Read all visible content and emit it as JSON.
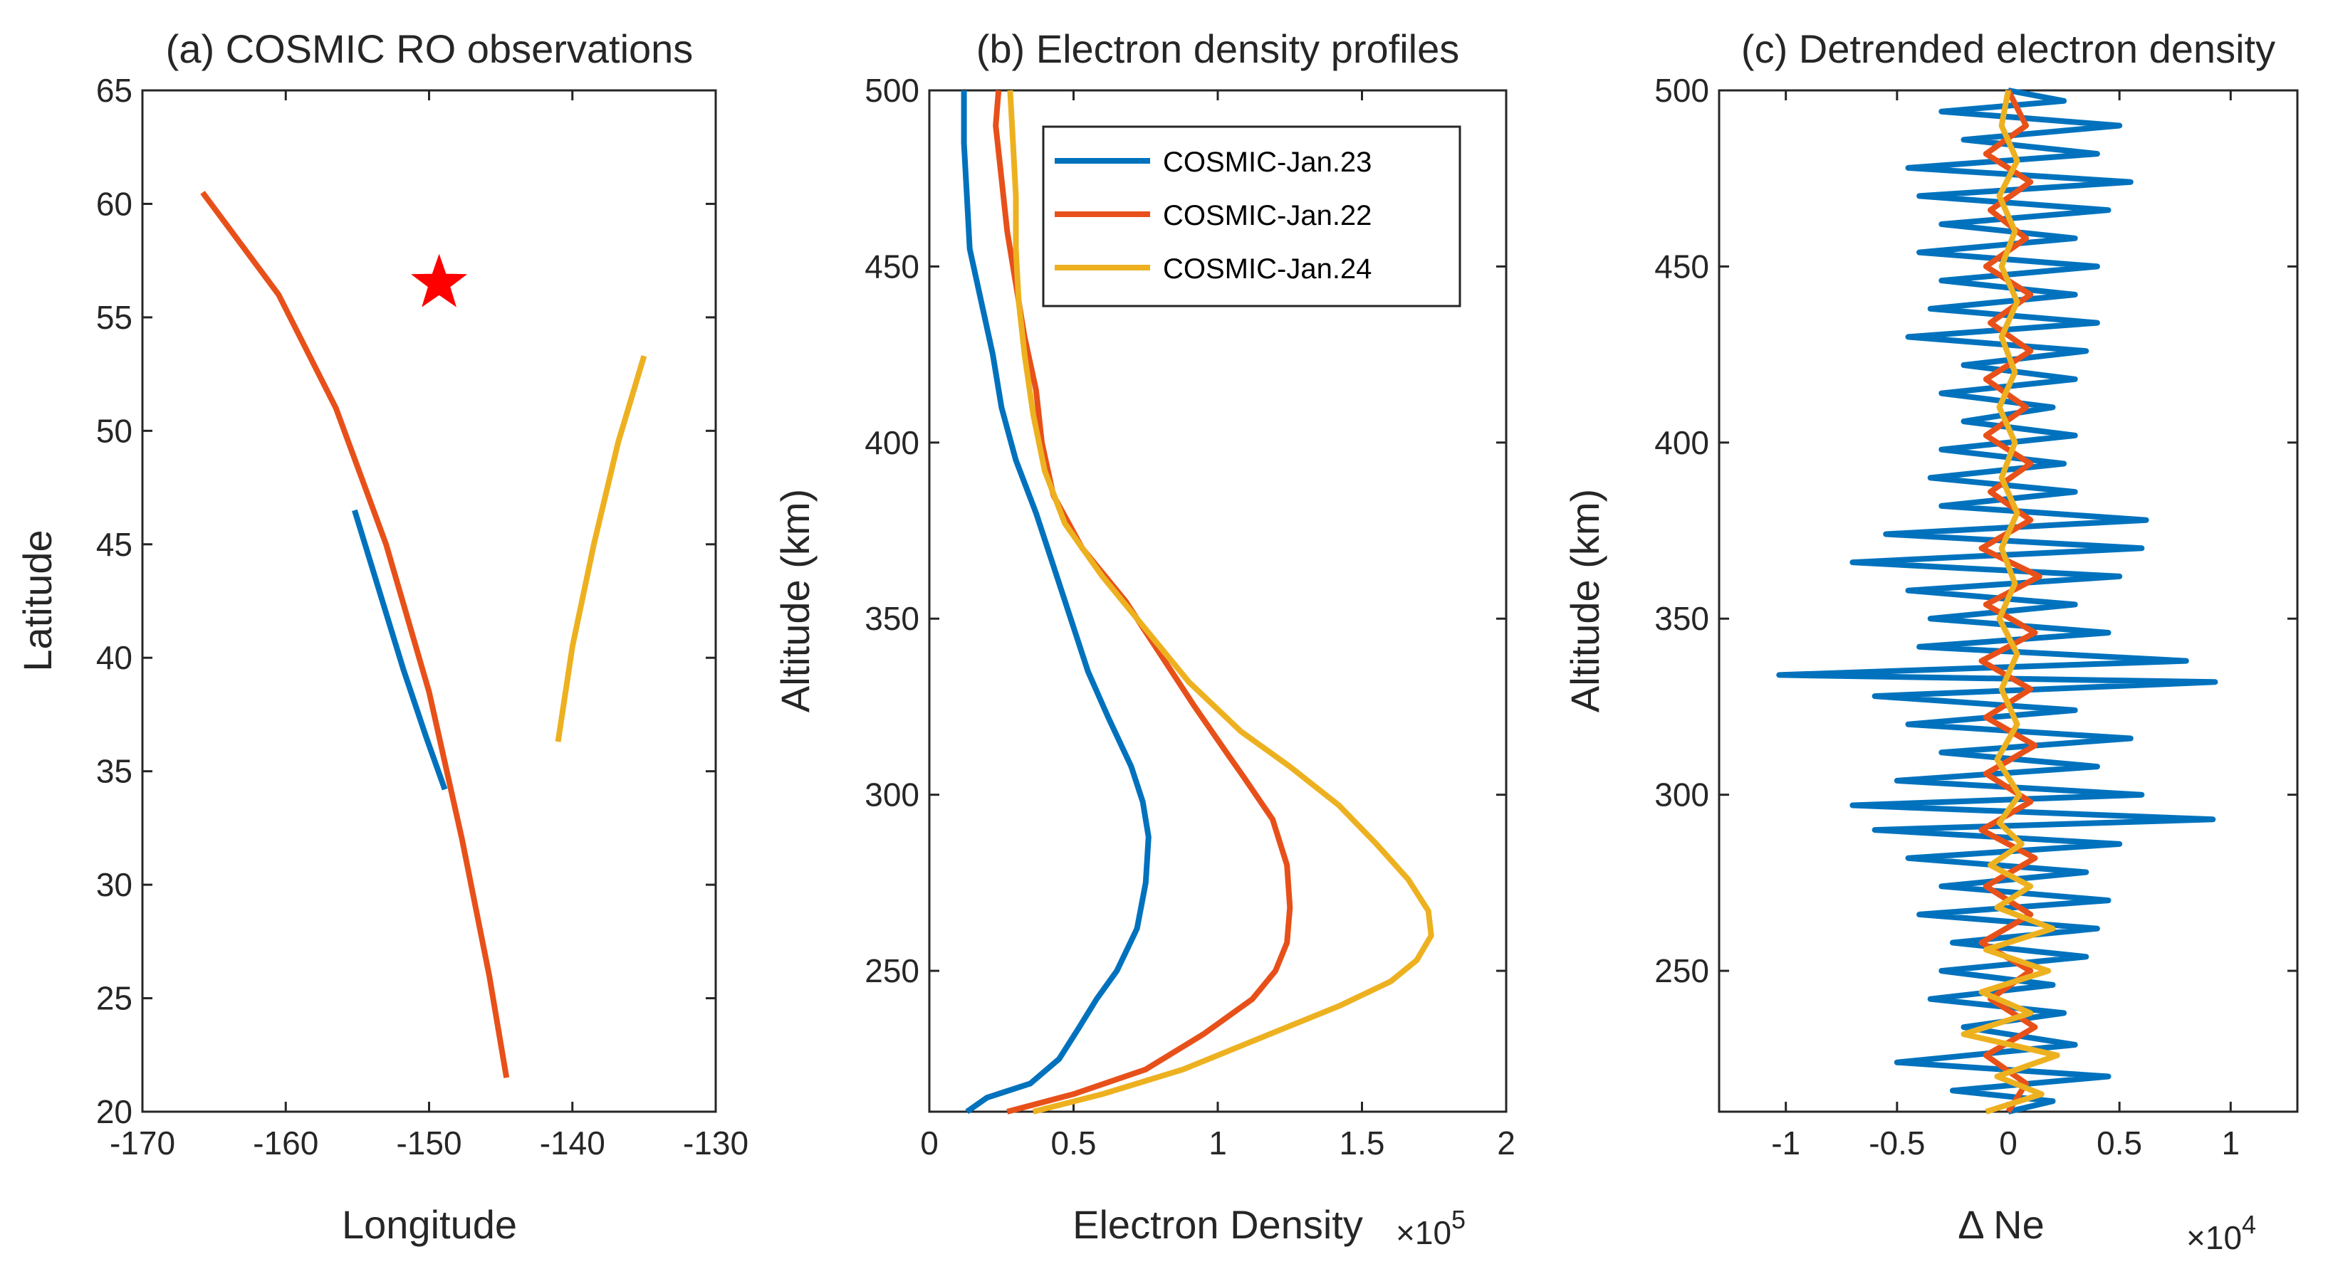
{
  "chart_data": [
    {
      "type": "line",
      "title": "(a) COSMIC RO observations",
      "xlabel": "Longitude",
      "ylabel": "Latitude",
      "xlim": [
        -170,
        -130
      ],
      "ylim": [
        20,
        65
      ],
      "xticks": [
        -170,
        -160,
        -150,
        -140,
        -130
      ],
      "yticks": [
        20,
        25,
        30,
        35,
        40,
        45,
        50,
        55,
        60,
        65
      ],
      "xtick_labels": [
        "-170",
        "-160",
        "-150",
        "-140",
        "-130"
      ],
      "ytick_labels": [
        "20",
        "25",
        "30",
        "35",
        "40",
        "45",
        "50",
        "55",
        "60",
        "65"
      ],
      "series": [
        {
          "name": "COSMIC-Jan.23",
          "color": "#0072BD",
          "points": [
            [
              -155.2,
              46.5
            ],
            [
              -153.5,
              43.0
            ],
            [
              -151.8,
              39.5
            ],
            [
              -150.2,
              36.5
            ],
            [
              -148.9,
              34.2
            ]
          ]
        },
        {
          "name": "COSMIC-Jan.22",
          "color": "#E8501A",
          "points": [
            [
              -165.8,
              60.5
            ],
            [
              -160.5,
              56.0
            ],
            [
              -156.5,
              51.0
            ],
            [
              -153.0,
              45.0
            ],
            [
              -150.0,
              38.5
            ],
            [
              -147.7,
              32.0
            ],
            [
              -145.8,
              26.0
            ],
            [
              -144.6,
              21.5
            ]
          ]
        },
        {
          "name": "COSMIC-Jan.24",
          "color": "#EDB120",
          "points": [
            [
              -135.0,
              53.3
            ],
            [
              -136.8,
              49.5
            ],
            [
              -138.5,
              45.0
            ],
            [
              -140.0,
              40.5
            ],
            [
              -141.0,
              36.3
            ]
          ]
        }
      ],
      "marker": {
        "name": "event-location",
        "symbol": "star",
        "color": "#FF0000",
        "lon": -149.3,
        "lat": 56.5
      }
    },
    {
      "type": "line",
      "title": "(b) Electron density profiles",
      "xlabel": "Electron Density",
      "x_exponent_label": "×10",
      "x_exponent": "5",
      "ylabel": "Altitude (km)",
      "xlim": [
        0,
        2
      ],
      "ylim": [
        210,
        500
      ],
      "xticks": [
        0,
        0.5,
        1,
        1.5,
        2
      ],
      "xtick_labels": [
        "0",
        "0.5",
        "1",
        "1.5",
        "2"
      ],
      "yticks": [
        250,
        300,
        350,
        400,
        450,
        500
      ],
      "ytick_labels": [
        "250",
        "300",
        "350",
        "400",
        "450",
        "500"
      ],
      "legend": {
        "position": "top-right",
        "entries": [
          "COSMIC-Jan.23",
          "COSMIC-Jan.22",
          "COSMIC-Jan.24"
        ]
      },
      "series": [
        {
          "name": "COSMIC-Jan.23",
          "color": "#0072BD",
          "points": [
            [
              0.13,
              210
            ],
            [
              0.2,
              214
            ],
            [
              0.35,
              218
            ],
            [
              0.45,
              225
            ],
            [
              0.52,
              234
            ],
            [
              0.58,
              242
            ],
            [
              0.65,
              250
            ],
            [
              0.72,
              262
            ],
            [
              0.75,
              275
            ],
            [
              0.76,
              288
            ],
            [
              0.74,
              298
            ],
            [
              0.7,
              308
            ],
            [
              0.62,
              322
            ],
            [
              0.55,
              335
            ],
            [
              0.49,
              350
            ],
            [
              0.43,
              365
            ],
            [
              0.37,
              380
            ],
            [
              0.3,
              395
            ],
            [
              0.25,
              410
            ],
            [
              0.22,
              425
            ],
            [
              0.18,
              440
            ],
            [
              0.14,
              455
            ],
            [
              0.13,
              470
            ],
            [
              0.12,
              485
            ],
            [
              0.12,
              500
            ]
          ]
        },
        {
          "name": "COSMIC-Jan.22",
          "color": "#E8501A",
          "points": [
            [
              0.27,
              210
            ],
            [
              0.5,
              215
            ],
            [
              0.75,
              222
            ],
            [
              0.95,
              232
            ],
            [
              1.12,
              242
            ],
            [
              1.2,
              250
            ],
            [
              1.24,
              258
            ],
            [
              1.25,
              268
            ],
            [
              1.24,
              280
            ],
            [
              1.19,
              293
            ],
            [
              1.09,
              305
            ],
            [
              1.03,
              312
            ],
            [
              0.92,
              325
            ],
            [
              0.8,
              340
            ],
            [
              0.68,
              355
            ],
            [
              0.53,
              370
            ],
            [
              0.43,
              385
            ],
            [
              0.39,
              400
            ],
            [
              0.37,
              415
            ],
            [
              0.33,
              430
            ],
            [
              0.3,
              445
            ],
            [
              0.27,
              460
            ],
            [
              0.25,
              475
            ],
            [
              0.23,
              490
            ],
            [
              0.24,
              500
            ]
          ]
        },
        {
          "name": "COSMIC-Jan.24",
          "color": "#EDB120",
          "points": [
            [
              0.36,
              210
            ],
            [
              0.6,
              215
            ],
            [
              0.88,
              222
            ],
            [
              1.18,
              232
            ],
            [
              1.42,
              240
            ],
            [
              1.6,
              247
            ],
            [
              1.69,
              253
            ],
            [
              1.74,
              260
            ],
            [
              1.73,
              267
            ],
            [
              1.66,
              276
            ],
            [
              1.55,
              286
            ],
            [
              1.42,
              297
            ],
            [
              1.25,
              308
            ],
            [
              1.08,
              318
            ],
            [
              0.9,
              332
            ],
            [
              0.75,
              347
            ],
            [
              0.6,
              362
            ],
            [
              0.47,
              377
            ],
            [
              0.4,
              392
            ],
            [
              0.36,
              408
            ],
            [
              0.33,
              425
            ],
            [
              0.31,
              440
            ],
            [
              0.3,
              455
            ],
            [
              0.3,
              470
            ],
            [
              0.29,
              485
            ],
            [
              0.28,
              500
            ]
          ]
        }
      ]
    },
    {
      "type": "line",
      "title": "(c) Detrended electron density",
      "xlabel": "Δ Ne",
      "x_exponent_label": "×10",
      "x_exponent": "4",
      "ylabel": "Altitude (km)",
      "xlim": [
        -1.3,
        1.3
      ],
      "ylim": [
        210,
        500
      ],
      "xticks": [
        -1,
        -0.5,
        0,
        0.5,
        1
      ],
      "xtick_labels": [
        "-1",
        "-0.5",
        "0",
        "0.5",
        "1"
      ],
      "yticks": [
        250,
        300,
        350,
        400,
        450,
        500
      ],
      "ytick_labels": [
        "250",
        "300",
        "350",
        "400",
        "450",
        "500"
      ],
      "series": [
        {
          "name": "COSMIC-Jan.23",
          "color": "#0072BD",
          "points": [
            [
              0.0,
              210
            ],
            [
              0.2,
              213
            ],
            [
              -0.25,
              216
            ],
            [
              0.45,
              220
            ],
            [
              -0.5,
              224
            ],
            [
              0.3,
              229
            ],
            [
              -0.2,
              234
            ],
            [
              0.25,
              238
            ],
            [
              -0.35,
              242
            ],
            [
              0.2,
              246
            ],
            [
              -0.3,
              250
            ],
            [
              0.35,
              254
            ],
            [
              -0.25,
              258
            ],
            [
              0.4,
              262
            ],
            [
              -0.4,
              266
            ],
            [
              0.45,
              270
            ],
            [
              -0.3,
              274
            ],
            [
              0.35,
              278
            ],
            [
              -0.45,
              282
            ],
            [
              0.5,
              286
            ],
            [
              -0.6,
              290
            ],
            [
              0.92,
              293
            ],
            [
              -0.7,
              297
            ],
            [
              0.6,
              300
            ],
            [
              -0.5,
              304
            ],
            [
              0.4,
              308
            ],
            [
              -0.3,
              312
            ],
            [
              0.55,
              316
            ],
            [
              -0.45,
              320
            ],
            [
              0.3,
              324
            ],
            [
              -0.6,
              328
            ],
            [
              0.93,
              332
            ],
            [
              -1.03,
              334
            ],
            [
              0.8,
              338
            ],
            [
              -0.4,
              342
            ],
            [
              0.45,
              346
            ],
            [
              -0.35,
              350
            ],
            [
              0.3,
              354
            ],
            [
              -0.45,
              358
            ],
            [
              0.5,
              362
            ],
            [
              -0.7,
              366
            ],
            [
              0.6,
              370
            ],
            [
              -0.55,
              374
            ],
            [
              0.62,
              378
            ],
            [
              -0.3,
              382
            ],
            [
              0.3,
              386
            ],
            [
              -0.35,
              390
            ],
            [
              0.25,
              394
            ],
            [
              -0.3,
              398
            ],
            [
              0.3,
              402
            ],
            [
              -0.2,
              406
            ],
            [
              0.2,
              410
            ],
            [
              -0.3,
              414
            ],
            [
              0.3,
              418
            ],
            [
              -0.2,
              422
            ],
            [
              0.35,
              426
            ],
            [
              -0.45,
              430
            ],
            [
              0.4,
              434
            ],
            [
              -0.35,
              438
            ],
            [
              0.3,
              442
            ],
            [
              -0.3,
              446
            ],
            [
              0.4,
              450
            ],
            [
              -0.4,
              454
            ],
            [
              0.3,
              458
            ],
            [
              -0.3,
              462
            ],
            [
              0.45,
              466
            ],
            [
              -0.4,
              470
            ],
            [
              0.55,
              474
            ],
            [
              -0.45,
              478
            ],
            [
              0.4,
              482
            ],
            [
              -0.2,
              486
            ],
            [
              0.5,
              490
            ],
            [
              -0.3,
              494
            ],
            [
              0.25,
              497
            ],
            [
              0.0,
              500
            ]
          ]
        },
        {
          "name": "COSMIC-Jan.22",
          "color": "#E8501A",
          "points": [
            [
              0.0,
              210
            ],
            [
              0.08,
              218
            ],
            [
              -0.1,
              226
            ],
            [
              0.12,
              234
            ],
            [
              -0.08,
              242
            ],
            [
              0.1,
              250
            ],
            [
              -0.12,
              258
            ],
            [
              0.1,
              266
            ],
            [
              -0.1,
              274
            ],
            [
              0.12,
              282
            ],
            [
              -0.12,
              290
            ],
            [
              0.1,
              298
            ],
            [
              -0.1,
              306
            ],
            [
              0.12,
              314
            ],
            [
              -0.1,
              322
            ],
            [
              0.1,
              330
            ],
            [
              -0.12,
              338
            ],
            [
              0.12,
              346
            ],
            [
              -0.1,
              354
            ],
            [
              0.14,
              362
            ],
            [
              -0.12,
              370
            ],
            [
              0.1,
              378
            ],
            [
              -0.08,
              386
            ],
            [
              0.1,
              394
            ],
            [
              -0.1,
              402
            ],
            [
              0.08,
              410
            ],
            [
              -0.1,
              418
            ],
            [
              0.1,
              426
            ],
            [
              -0.08,
              434
            ],
            [
              0.1,
              442
            ],
            [
              -0.1,
              450
            ],
            [
              0.08,
              458
            ],
            [
              -0.08,
              466
            ],
            [
              0.1,
              474
            ],
            [
              -0.1,
              482
            ],
            [
              0.08,
              490
            ],
            [
              0.0,
              500
            ]
          ]
        },
        {
          "name": "COSMIC-Jan.24",
          "color": "#EDB120",
          "points": [
            [
              -0.1,
              210
            ],
            [
              0.15,
              215
            ],
            [
              -0.05,
              220
            ],
            [
              0.22,
              226
            ],
            [
              -0.2,
              232
            ],
            [
              0.1,
              238
            ],
            [
              -0.12,
              244
            ],
            [
              0.18,
              250
            ],
            [
              -0.1,
              256
            ],
            [
              0.2,
              262
            ],
            [
              -0.05,
              268
            ],
            [
              0.1,
              274
            ],
            [
              -0.08,
              280
            ],
            [
              0.06,
              286
            ],
            [
              -0.04,
              292
            ],
            [
              0.05,
              300
            ],
            [
              -0.05,
              310
            ],
            [
              0.04,
              320
            ],
            [
              -0.03,
              330
            ],
            [
              0.04,
              340
            ],
            [
              -0.04,
              350
            ],
            [
              0.03,
              360
            ],
            [
              -0.03,
              370
            ],
            [
              0.04,
              380
            ],
            [
              -0.03,
              390
            ],
            [
              0.03,
              400
            ],
            [
              -0.04,
              410
            ],
            [
              0.03,
              420
            ],
            [
              -0.03,
              430
            ],
            [
              0.04,
              440
            ],
            [
              -0.03,
              450
            ],
            [
              0.03,
              460
            ],
            [
              -0.04,
              470
            ],
            [
              0.04,
              480
            ],
            [
              -0.03,
              490
            ],
            [
              0.0,
              500
            ]
          ]
        }
      ]
    }
  ]
}
